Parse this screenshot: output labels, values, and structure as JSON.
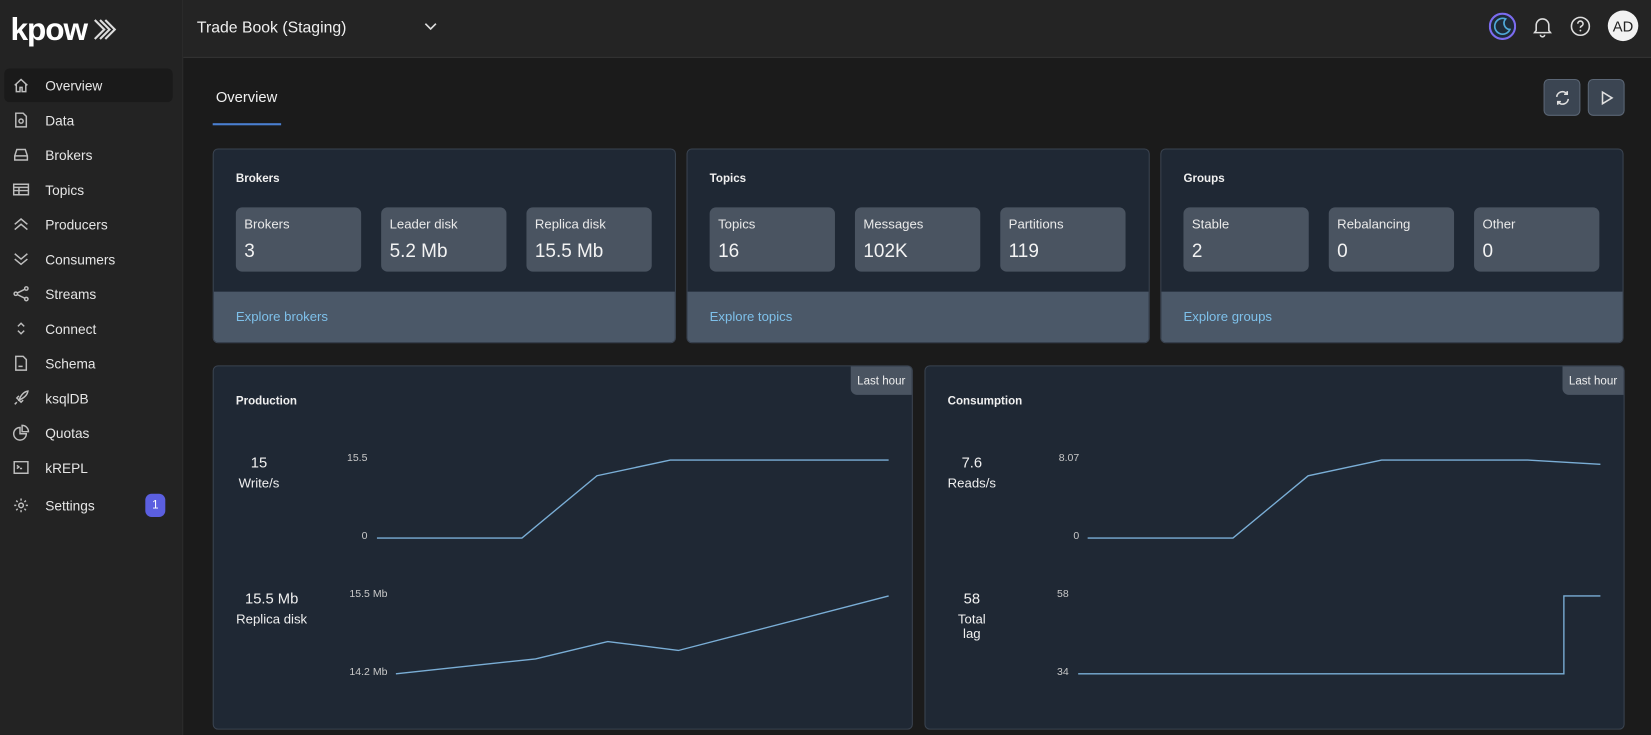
{
  "app": {
    "logo": "kpow",
    "environment": "Trade Book (Staging)",
    "avatar_initials": "AD"
  },
  "colors": {
    "accent": "#5b5fe0",
    "link": "#7ec0ea",
    "series_line": "#7aaed6",
    "card_bg": "#1f2834",
    "stat_bg": "#4a5461"
  },
  "sidebar": {
    "items": [
      {
        "label": "Overview",
        "icon": "home-icon",
        "active": true
      },
      {
        "label": "Data",
        "icon": "document-search-icon"
      },
      {
        "label": "Brokers",
        "icon": "server-icon"
      },
      {
        "label": "Topics",
        "icon": "table-icon"
      },
      {
        "label": "Producers",
        "icon": "chevrons-up-icon"
      },
      {
        "label": "Consumers",
        "icon": "chevrons-down-icon"
      },
      {
        "label": "Streams",
        "icon": "share-icon"
      },
      {
        "label": "Connect",
        "icon": "selector-icon"
      },
      {
        "label": "Schema",
        "icon": "file-icon"
      },
      {
        "label": "ksqlDB",
        "icon": "rocket-icon"
      },
      {
        "label": "Quotas",
        "icon": "pie-chart-icon"
      },
      {
        "label": "kREPL",
        "icon": "terminal-icon"
      },
      {
        "label": "Settings",
        "icon": "gear-icon",
        "badge": "1"
      }
    ]
  },
  "header": {
    "icons": [
      "theme-toggle-icon",
      "bell-icon",
      "help-icon"
    ]
  },
  "main": {
    "tab": "Overview",
    "toolbar": {
      "refresh": "refresh-icon",
      "play": "play-icon"
    },
    "summary_cards": [
      {
        "title": "Brokers",
        "stats": [
          {
            "label": "Brokers",
            "value": "3"
          },
          {
            "label": "Leader disk",
            "value": "5.2 Mb"
          },
          {
            "label": "Replica disk",
            "value": "15.5 Mb"
          }
        ],
        "link": "Explore brokers"
      },
      {
        "title": "Topics",
        "stats": [
          {
            "label": "Topics",
            "value": "16"
          },
          {
            "label": "Messages",
            "value": "102K"
          },
          {
            "label": "Partitions",
            "value": "119"
          }
        ],
        "link": "Explore topics"
      },
      {
        "title": "Groups",
        "stats": [
          {
            "label": "Stable",
            "value": "2"
          },
          {
            "label": "Rebalancing",
            "value": "0"
          },
          {
            "label": "Other",
            "value": "0"
          }
        ],
        "link": "Explore groups"
      }
    ],
    "panels": [
      {
        "title": "Production",
        "range": "Last hour",
        "metrics": [
          {
            "value": "15",
            "label": "Write/s"
          },
          {
            "value": "15.5 Mb",
            "label": "Replica disk"
          }
        ]
      },
      {
        "title": "Consumption",
        "range": "Last hour",
        "metrics": [
          {
            "value": "7.6",
            "label": "Reads/s"
          },
          {
            "value": "58",
            "label": "Total lag"
          }
        ]
      }
    ]
  },
  "chart_data": [
    {
      "type": "line",
      "panel": "Production",
      "metric": "Write/s",
      "ylim": [
        0,
        15.5
      ],
      "ytick_labels": [
        "15.5",
        "0"
      ],
      "xlim": [
        0,
        60
      ],
      "x": [
        0,
        17,
        25.8,
        34.4,
        60
      ],
      "y": [
        0,
        0,
        12.4,
        15.5,
        15.5
      ]
    },
    {
      "type": "line",
      "panel": "Production",
      "metric": "Replica disk",
      "ylim": [
        14.2,
        15.5
      ],
      "ytick_labels": [
        "15.5 Mb",
        "14.2 Mb"
      ],
      "xlim": [
        0,
        60
      ],
      "x": [
        0,
        17,
        25.8,
        34.4,
        60
      ],
      "y": [
        14.2,
        14.45,
        14.74,
        14.59,
        15.5
      ]
    },
    {
      "type": "line",
      "panel": "Consumption",
      "metric": "Reads/s",
      "ylim": [
        0,
        8.07
      ],
      "ytick_labels": [
        "8.07",
        "0"
      ],
      "xlim": [
        0,
        60
      ],
      "x": [
        0,
        17,
        25.8,
        34.4,
        51.5,
        60
      ],
      "y": [
        0,
        0,
        6.44,
        8.07,
        8.07,
        7.63
      ]
    },
    {
      "type": "line",
      "panel": "Consumption",
      "metric": "Total lag",
      "ylim": [
        34,
        58
      ],
      "ytick_labels": [
        "58",
        "34"
      ],
      "xlim": [
        0,
        60
      ],
      "x": [
        0,
        55.8,
        55.8,
        60
      ],
      "y": [
        34,
        34,
        58,
        58
      ]
    }
  ]
}
